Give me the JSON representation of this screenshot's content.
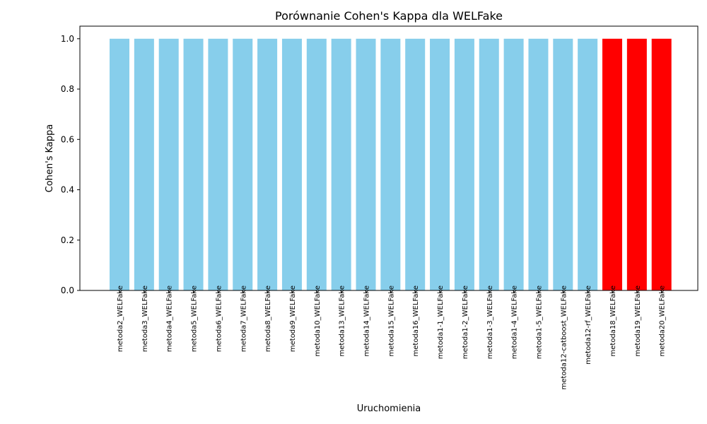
{
  "chart_data": {
    "type": "bar",
    "title": "Porównanie Cohen's Kappa dla WELFake",
    "xlabel": "Uruchomienia",
    "ylabel": "Cohen's Kappa",
    "ylim": [
      0,
      1.05
    ],
    "yticks": [
      "0.0",
      "0.2",
      "0.4",
      "0.6",
      "0.8",
      "1.0"
    ],
    "grid": false,
    "categories": [
      "metoda2_WELFake",
      "metoda3_WELFake",
      "metoda4_WELFake",
      "metoda5_WELFake",
      "metoda6_WELFake",
      "metoda7_WELFake",
      "metoda8_WELFake",
      "metoda9_WELFake",
      "metoda10_WELFake",
      "metoda13_WELFake",
      "metoda14_WELFake",
      "metoda15_WELFake",
      "metoda16_WELFake",
      "metoda1-1_WELFake",
      "metoda1-2_WELFake",
      "metoda1-3_WELFake",
      "metoda1-4_WELFake",
      "metoda1-5_WELFake",
      "metoda12-catboost_WELFake",
      "metoda12-rf_WELFake",
      "metoda18_WELFake",
      "metoda19_WELFake",
      "metoda20_WELFake"
    ],
    "values": [
      1,
      1,
      1,
      1,
      1,
      1,
      1,
      1,
      1,
      1,
      1,
      1,
      1,
      1,
      1,
      1,
      1,
      1,
      1,
      1,
      1,
      1,
      1
    ],
    "colors": [
      "#87ceeb",
      "#87ceeb",
      "#87ceeb",
      "#87ceeb",
      "#87ceeb",
      "#87ceeb",
      "#87ceeb",
      "#87ceeb",
      "#87ceeb",
      "#87ceeb",
      "#87ceeb",
      "#87ceeb",
      "#87ceeb",
      "#87ceeb",
      "#87ceeb",
      "#87ceeb",
      "#87ceeb",
      "#87ceeb",
      "#87ceeb",
      "#87ceeb",
      "#ff0000",
      "#ff0000",
      "#ff0000"
    ]
  }
}
